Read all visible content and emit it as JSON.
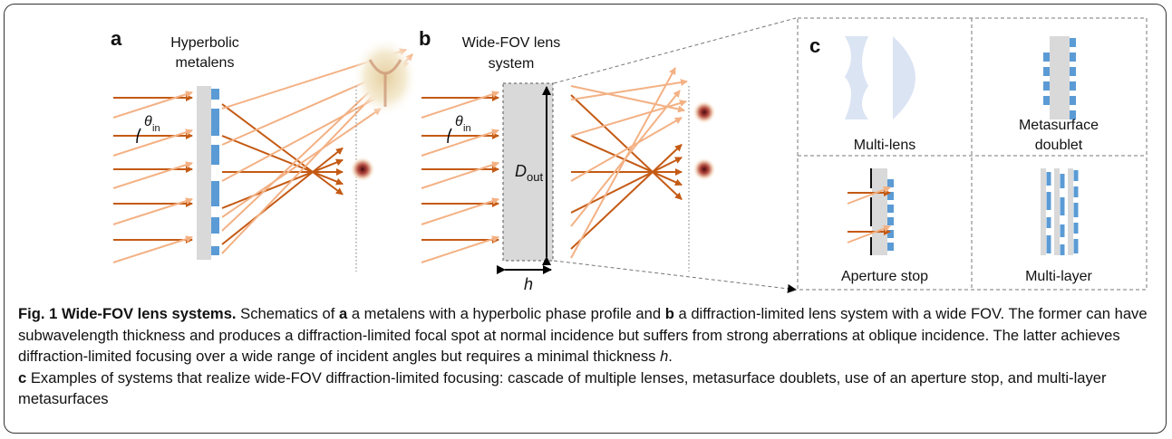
{
  "panel_a": {
    "label": "a",
    "title": [
      "Hyperbolic",
      "metalens"
    ],
    "angle": {
      "symbol": "θ",
      "subscript": "in"
    }
  },
  "panel_b": {
    "label": "b",
    "title": [
      "Wide-FOV lens",
      "system"
    ],
    "angle": {
      "symbol": "θ",
      "subscript": "in"
    },
    "diameter": {
      "symbol": "D",
      "subscript": "out"
    },
    "thickness": "h"
  },
  "panel_c": {
    "label": "c",
    "cells": [
      [
        "Multi-lens"
      ],
      [
        "Metasurface",
        "doublet"
      ],
      [
        "Aperture stop"
      ],
      [
        "Multi-layer"
      ]
    ]
  },
  "caption": {
    "paragraphs": [
      [
        {
          "text": "Fig. 1 Wide-FOV lens systems.",
          "bold": true
        },
        {
          "text": " Schematics of "
        },
        {
          "text": "a",
          "bold": true
        },
        {
          "text": " a metalens with a hyperbolic phase profile and "
        },
        {
          "text": "b",
          "bold": true
        },
        {
          "text": " a diffraction-limited lens system with a wide FOV. The former can have subwavelength thickness and produces a diffraction-limited focal spot at normal incidence but suffers from strong aberrations at oblique incidence. The latter achieves diffraction-limited focusing over a wide range of incident angles but requires a minimal thickness "
        },
        {
          "text": "h",
          "italic": true
        },
        {
          "text": "."
        }
      ],
      [
        {
          "text": "c",
          "bold": true
        },
        {
          "text": " Examples of systems that realize wide-FOV diffraction-limited focusing: cascade of multiple lenses, metasurface doublets, use of an aperture stop, and multi-layer metasurfaces"
        }
      ]
    ]
  }
}
